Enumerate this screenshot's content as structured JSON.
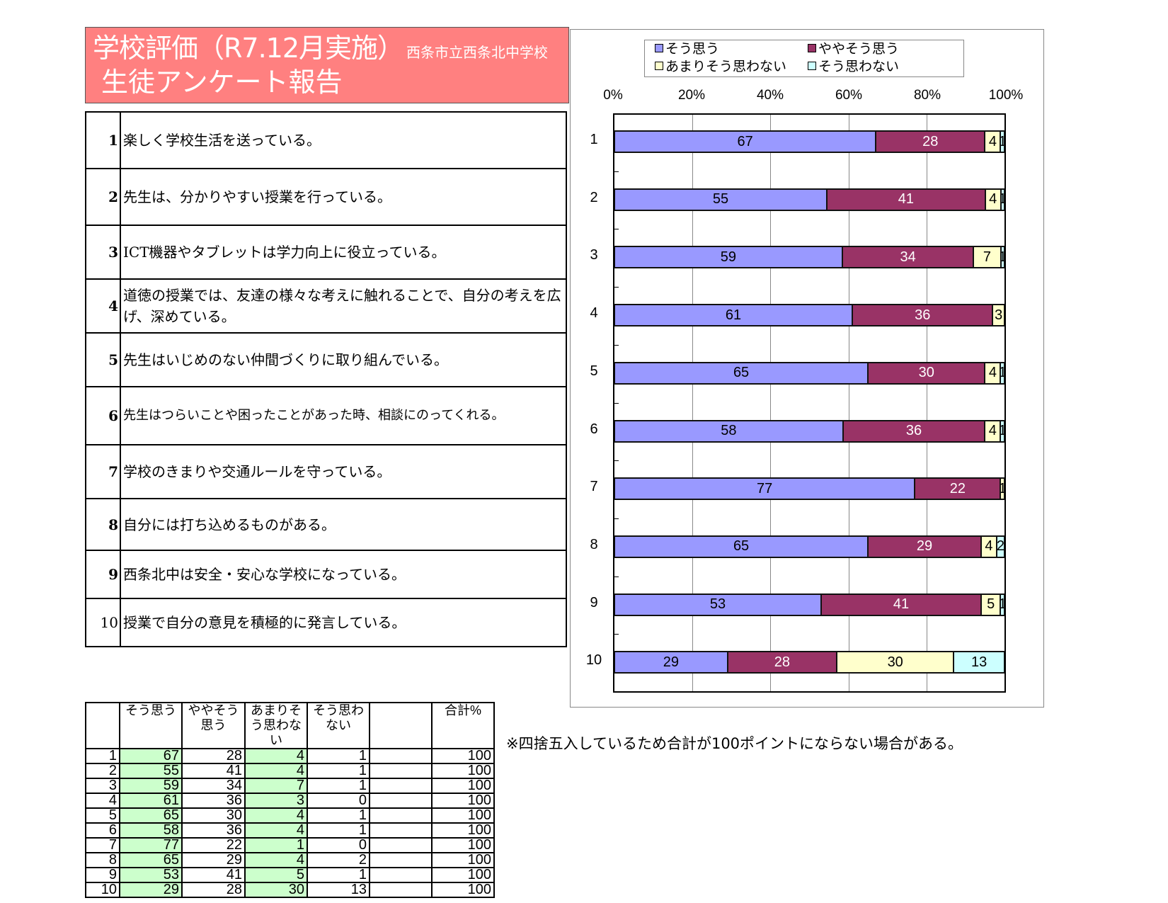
{
  "header": {
    "title": "学校評価（R7.12月実施）",
    "school": "西条市立西条北中学校",
    "subtitle": "生徒アンケート報告"
  },
  "questions": [
    {
      "no": "1",
      "text": "楽しく学校生活を送っている。"
    },
    {
      "no": "2",
      "text": "先生は、分かりやすい授業を行っている。"
    },
    {
      "no": "3",
      "text": "ICT機器やタブレットは学力向上に役立っている。"
    },
    {
      "no": "4",
      "text": "道徳の授業では、友達の様々な考えに触れることで、自分の考えを広げ、深めている。"
    },
    {
      "no": "5",
      "text": "先生はいじめのない仲間づくりに取り組んでいる。"
    },
    {
      "no": "6",
      "text": "先生はつらいことや困ったことがあった時、相談にのってくれる。"
    },
    {
      "no": "7",
      "text": "学校のきまりや交通ルールを守っている。"
    },
    {
      "no": "8",
      "text": "自分には打ち込めるものがある。"
    },
    {
      "no": "9",
      "text": "西条北中は安全・安心な学校になっている。"
    },
    {
      "no": "10",
      "text": "授業で自分の意見を積極的に発言している。"
    }
  ],
  "chart_data": {
    "type": "bar",
    "orientation": "horizontal-stacked-100",
    "title": "",
    "xlabel": "",
    "ylabel": "",
    "xlim": [
      0,
      100
    ],
    "x_ticks": [
      "0%",
      "20%",
      "40%",
      "60%",
      "80%",
      "100%"
    ],
    "categories": [
      "1",
      "2",
      "3",
      "4",
      "5",
      "6",
      "7",
      "8",
      "9",
      "10"
    ],
    "series": [
      {
        "name": "そう思う",
        "color": "#9999ff",
        "values": [
          67,
          55,
          59,
          61,
          65,
          58,
          77,
          65,
          53,
          29
        ]
      },
      {
        "name": "ややそう思う",
        "color": "#993366",
        "values": [
          28,
          41,
          34,
          36,
          30,
          36,
          22,
          29,
          41,
          28
        ]
      },
      {
        "name": "あまりそう思わない",
        "color": "#ffffcc",
        "values": [
          4,
          4,
          7,
          3,
          4,
          4,
          1,
          4,
          5,
          30
        ]
      },
      {
        "name": "そう思わない",
        "color": "#ccffff",
        "values": [
          1,
          1,
          1,
          0,
          1,
          1,
          0,
          2,
          1,
          13
        ]
      }
    ],
    "legend_position": "top",
    "grid": true,
    "data_labels": true
  },
  "data_table": {
    "headers": [
      "",
      "そう思う",
      "ややそう思う",
      "あまりそう思わない",
      "そう思わない",
      "",
      "合計%"
    ],
    "rows": [
      [
        "1",
        "67",
        "28",
        "4",
        "1",
        "",
        "100"
      ],
      [
        "2",
        "55",
        "41",
        "4",
        "1",
        "",
        "100"
      ],
      [
        "3",
        "59",
        "34",
        "7",
        "1",
        "",
        "100"
      ],
      [
        "4",
        "61",
        "36",
        "3",
        "0",
        "",
        "100"
      ],
      [
        "5",
        "65",
        "30",
        "4",
        "1",
        "",
        "100"
      ],
      [
        "6",
        "58",
        "36",
        "4",
        "1",
        "",
        "100"
      ],
      [
        "7",
        "77",
        "22",
        "1",
        "0",
        "",
        "100"
      ],
      [
        "8",
        "65",
        "29",
        "4",
        "2",
        "",
        "100"
      ],
      [
        "9",
        "53",
        "41",
        "5",
        "1",
        "",
        "100"
      ],
      [
        "10",
        "29",
        "28",
        "30",
        "13",
        "",
        "100"
      ]
    ]
  },
  "note": "※四捨五入しているため合計が100ポイントにならない場合がある。"
}
